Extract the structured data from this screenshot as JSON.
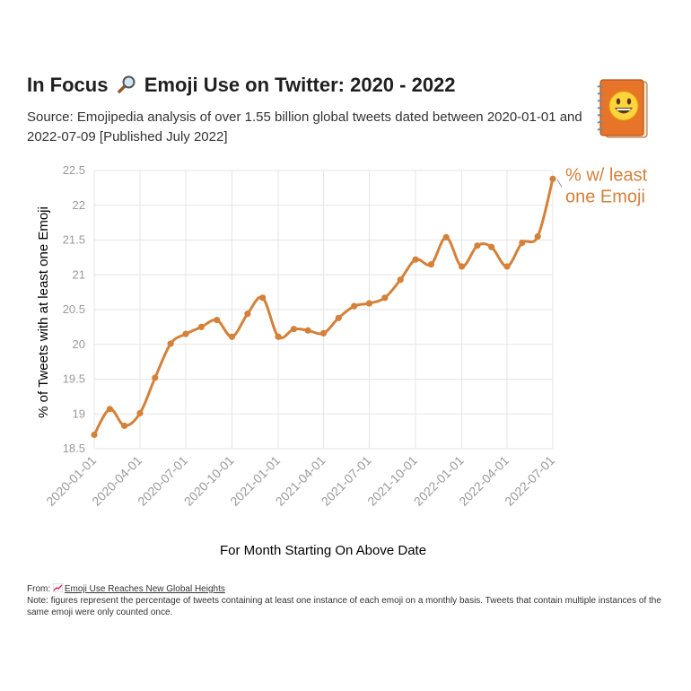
{
  "header": {
    "title_pre": "In Focus",
    "title_post": "Emoji Use on Twitter: 2020 - 2022",
    "subtitle": "Source: Emojipedia analysis of over 1.55 billion global tweets dated between 2020-01-01 and 2022-07-09 [Published July 2022]"
  },
  "footer": {
    "from_label": "From:",
    "link_text": "Emoji Use Reaches New Global Heights",
    "note": "Note: figures represent the percentage of tweets containing at least one instance of each emoji on a monthly basis. Tweets that contain multiple instances of the same emoji were only counted once."
  },
  "colors": {
    "line": "#d4813a",
    "grid": "#e6e6e6",
    "axis_text": "#9a9a9a"
  },
  "icons": {
    "title_icon": "magnifying-glass-icon",
    "corner_icon": "emoji-book-icon",
    "footer_icon": "chart-increasing-icon"
  },
  "chart_data": {
    "type": "line",
    "title": "",
    "xlabel": "For Month Starting On Above Date",
    "ylabel": "% of Tweets with at least one Emoji",
    "ylim": [
      18.5,
      22.5
    ],
    "yticks": [
      "18.5",
      "19",
      "19.5",
      "20",
      "20.5",
      "21",
      "21.5",
      "22",
      "22.5"
    ],
    "xticks": [
      "2020-01-01",
      "2020-04-01",
      "2020-07-01",
      "2020-10-01",
      "2021-01-01",
      "2021-04-01",
      "2021-07-01",
      "2021-10-01",
      "2022-01-01",
      "2022-04-01",
      "2022-07-01"
    ],
    "grid": true,
    "legend": "inline label at line end",
    "series": [
      {
        "name": "% w/ least one Emoji",
        "x": [
          "2020-01-01",
          "2020-02-01",
          "2020-03-01",
          "2020-04-01",
          "2020-05-01",
          "2020-06-01",
          "2020-07-01",
          "2020-08-01",
          "2020-09-01",
          "2020-10-01",
          "2020-11-01",
          "2020-12-01",
          "2021-01-01",
          "2021-02-01",
          "2021-03-01",
          "2021-04-01",
          "2021-05-01",
          "2021-06-01",
          "2021-07-01",
          "2021-08-01",
          "2021-09-01",
          "2021-10-01",
          "2021-11-01",
          "2021-12-01",
          "2022-01-01",
          "2022-02-01",
          "2022-03-01",
          "2022-04-01",
          "2022-05-01",
          "2022-06-01",
          "2022-07-01"
        ],
        "values": [
          18.7,
          19.07,
          18.83,
          19.01,
          19.52,
          20.01,
          20.15,
          20.25,
          20.35,
          20.11,
          20.44,
          20.67,
          20.11,
          20.22,
          20.2,
          20.16,
          20.38,
          20.55,
          20.59,
          20.67,
          20.93,
          21.22,
          21.15,
          21.54,
          21.12,
          21.42,
          21.4,
          21.12,
          21.46,
          21.55,
          22.38
        ]
      }
    ]
  }
}
